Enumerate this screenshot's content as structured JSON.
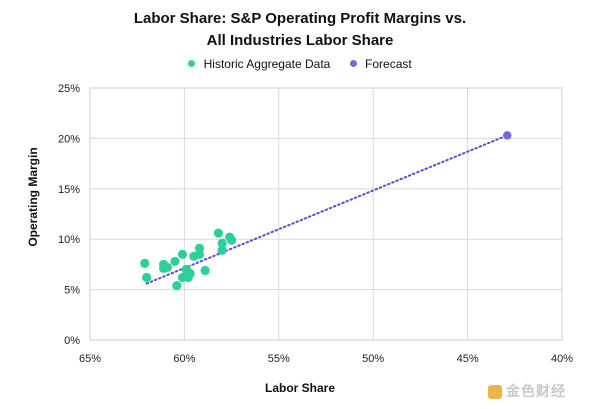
{
  "chart_data": {
    "type": "scatter",
    "title_line1": "Labor Share: S&P Operating Profit Margins vs.",
    "title_line2": "All Industries Labor Share",
    "xlabel": "Labor Share",
    "ylabel": "Operating Margin",
    "x_axis_reversed": true,
    "xlim": [
      65,
      40
    ],
    "ylim": [
      0,
      25
    ],
    "x_ticks": [
      65,
      60,
      55,
      50,
      45,
      40
    ],
    "x_tick_labels": [
      "65%",
      "60%",
      "55%",
      "50%",
      "45%",
      "40%"
    ],
    "y_ticks": [
      0,
      5,
      10,
      15,
      20,
      25
    ],
    "y_tick_labels": [
      "0%",
      "5%",
      "10%",
      "15%",
      "20%",
      "25%"
    ],
    "grid": true,
    "legend_position": "top-center",
    "series": [
      {
        "name": "Historic Aggregate Data",
        "color": "#2dcf9a",
        "points": [
          [
            62.1,
            7.6
          ],
          [
            62.0,
            6.2
          ],
          [
            61.1,
            7.5
          ],
          [
            61.1,
            7.1
          ],
          [
            60.9,
            7.2
          ],
          [
            60.5,
            7.8
          ],
          [
            60.4,
            5.4
          ],
          [
            60.1,
            8.5
          ],
          [
            60.1,
            6.2
          ],
          [
            59.9,
            7.0
          ],
          [
            59.8,
            6.2
          ],
          [
            59.7,
            6.6
          ],
          [
            59.5,
            8.3
          ],
          [
            59.2,
            8.5
          ],
          [
            59.2,
            9.1
          ],
          [
            58.9,
            6.9
          ],
          [
            58.2,
            10.6
          ],
          [
            58.0,
            9.6
          ],
          [
            58.0,
            8.9
          ],
          [
            57.6,
            10.2
          ],
          [
            57.5,
            9.9
          ]
        ]
      },
      {
        "name": "Forecast",
        "color": "#7b61e8",
        "points": [
          [
            42.9,
            20.3
          ]
        ]
      }
    ],
    "trendline": {
      "style": "dotted",
      "color": "#5b4bd6",
      "from": [
        62.0,
        5.6
      ],
      "to": [
        42.9,
        20.3
      ]
    }
  },
  "watermark": "金色财经"
}
